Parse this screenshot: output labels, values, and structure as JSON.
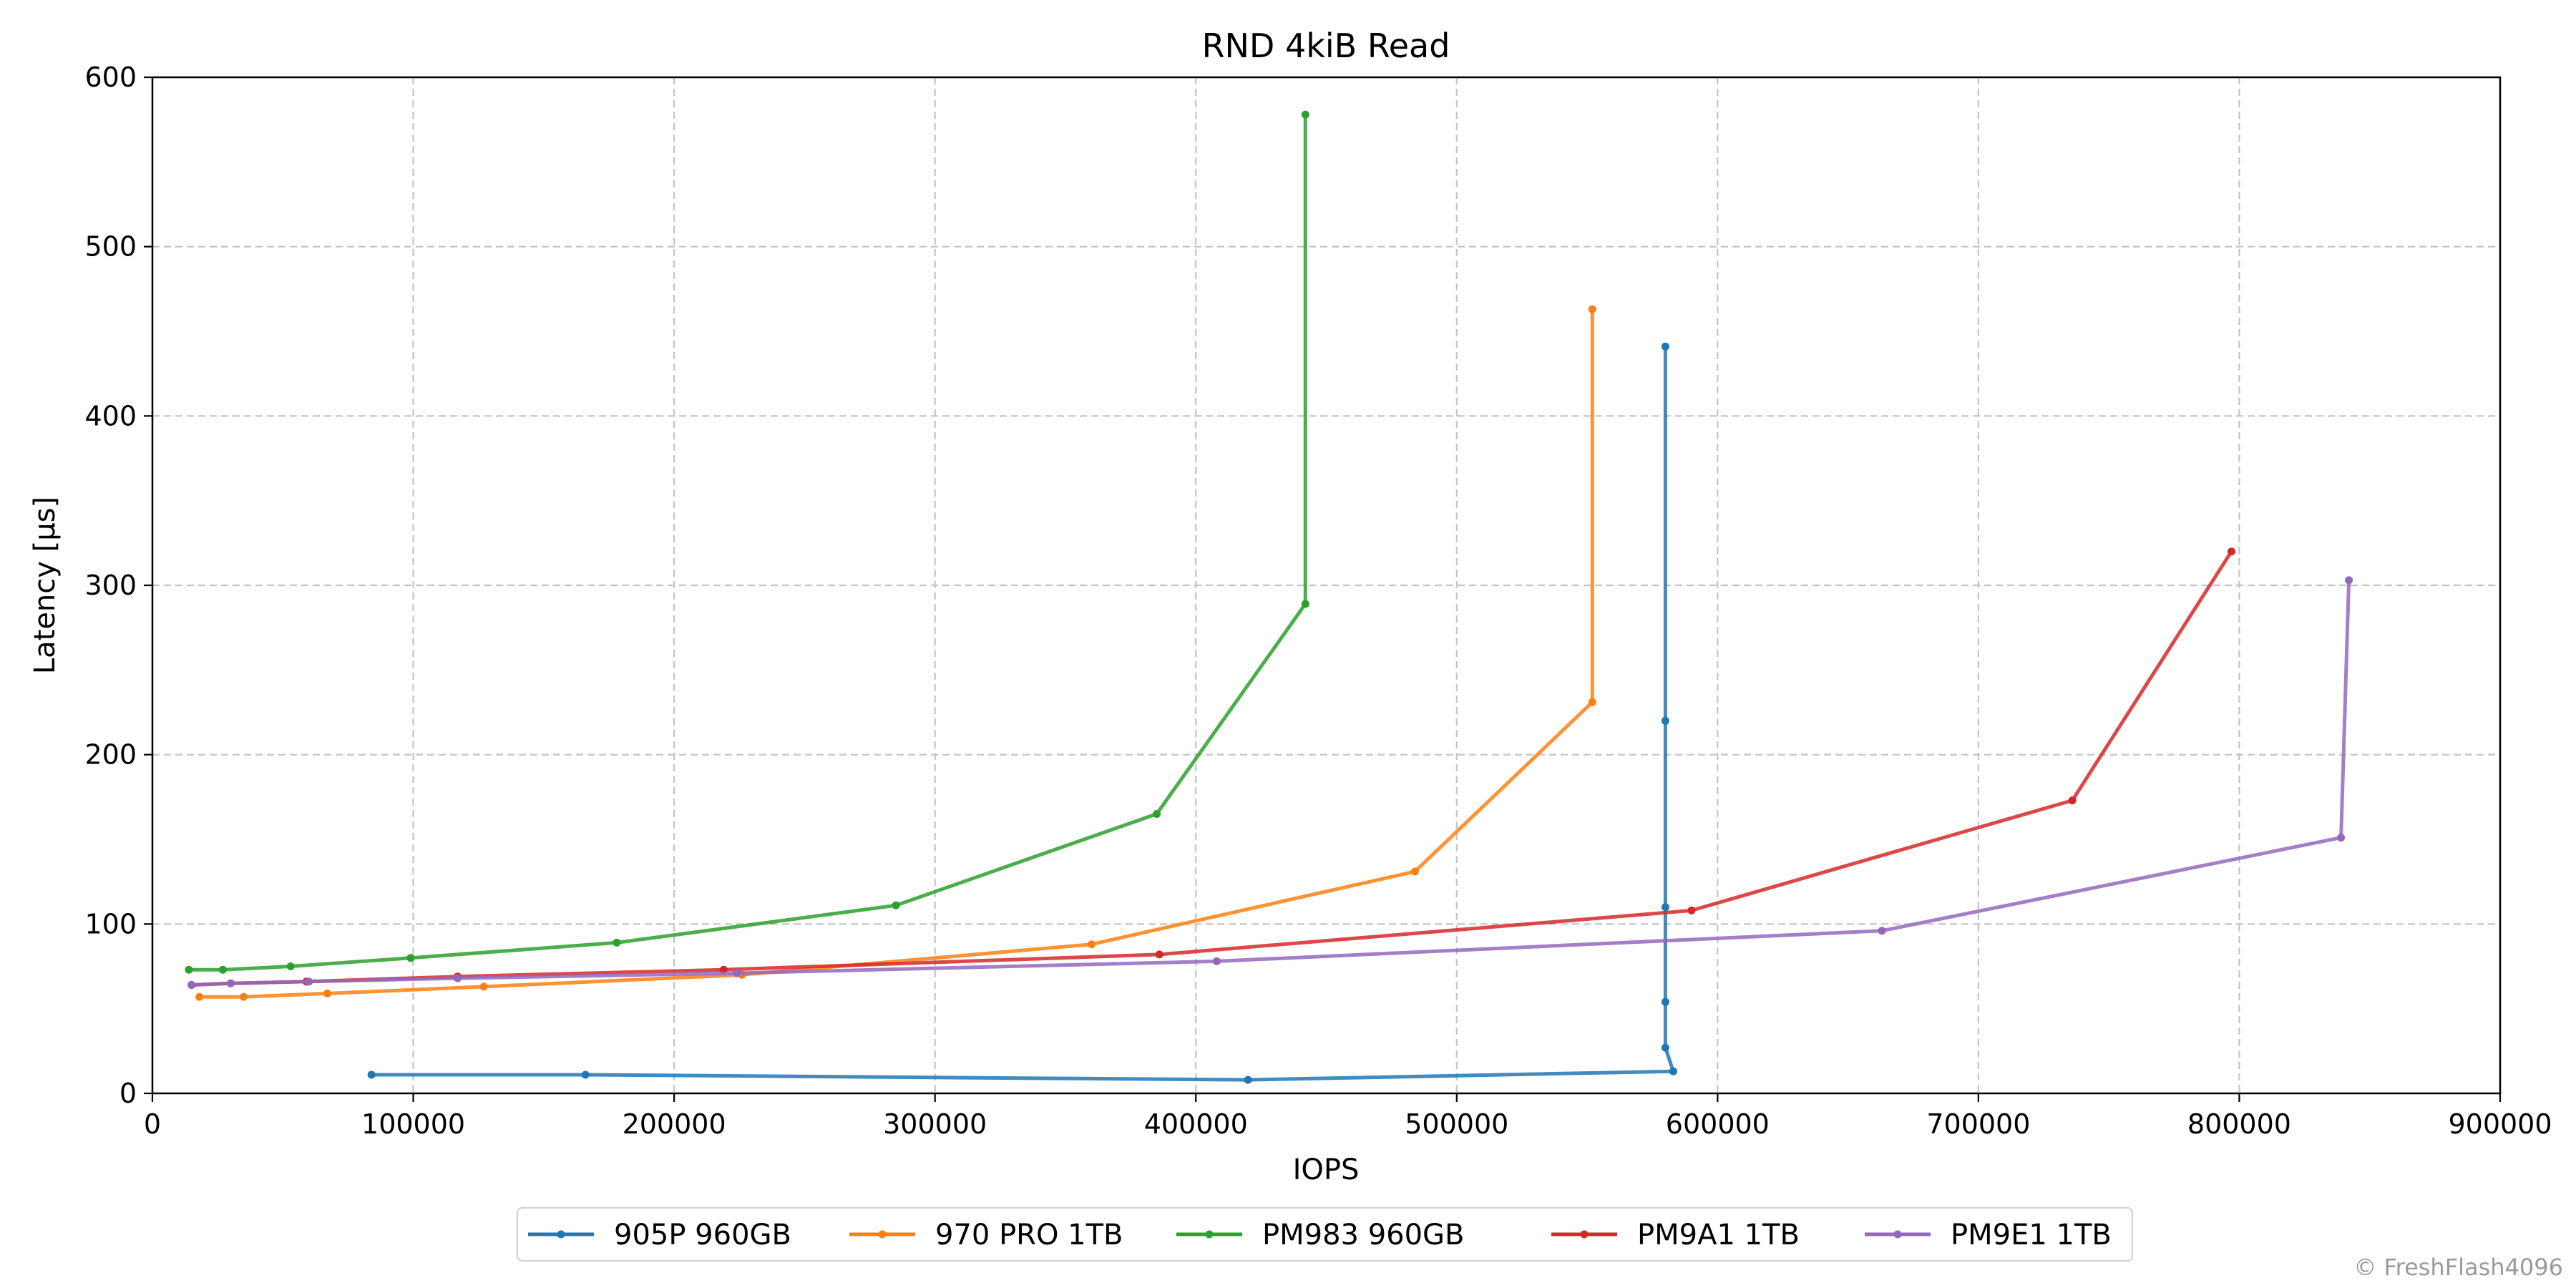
{
  "credit": "© FreshFlash4096",
  "chart_data": {
    "type": "line",
    "title": "RND 4kiB Read",
    "xlabel": "IOPS",
    "ylabel": "Latency [µs]",
    "xlim": [
      0,
      900000
    ],
    "ylim": [
      0,
      600
    ],
    "xticks": [
      0,
      100000,
      200000,
      300000,
      400000,
      500000,
      600000,
      700000,
      800000,
      900000
    ],
    "yticks": [
      0,
      100,
      200,
      300,
      400,
      500,
      600
    ],
    "grid": true,
    "legend_position": "bottom-center",
    "series": [
      {
        "name": "905P 960GB",
        "color": "#1f77b4",
        "points": [
          [
            84000,
            11
          ],
          [
            166000,
            11
          ],
          [
            420000,
            8
          ],
          [
            583000,
            13
          ],
          [
            580000,
            27
          ],
          [
            580000,
            54
          ],
          [
            580000,
            110
          ],
          [
            580000,
            220
          ],
          [
            580000,
            441
          ]
        ]
      },
      {
        "name": "970 PRO 1TB",
        "color": "#ff7f0e",
        "points": [
          [
            18000,
            57
          ],
          [
            35000,
            57
          ],
          [
            67000,
            59
          ],
          [
            127000,
            63
          ],
          [
            226000,
            70
          ],
          [
            360000,
            88
          ],
          [
            484000,
            131
          ],
          [
            552000,
            231
          ],
          [
            552000,
            463
          ]
        ]
      },
      {
        "name": "PM983 960GB",
        "color": "#2ca02c",
        "points": [
          [
            14000,
            73
          ],
          [
            27000,
            73
          ],
          [
            53000,
            75
          ],
          [
            99000,
            80
          ],
          [
            178000,
            89
          ],
          [
            285000,
            111
          ],
          [
            385000,
            165
          ],
          [
            442000,
            289
          ],
          [
            442000,
            578
          ]
        ]
      },
      {
        "name": "PM9A1 1TB",
        "color": "#d62728",
        "points": [
          [
            15000,
            64
          ],
          [
            30000,
            65
          ],
          [
            59000,
            66
          ],
          [
            117000,
            69
          ],
          [
            219000,
            73
          ],
          [
            386000,
            82
          ],
          [
            590000,
            108
          ],
          [
            736000,
            173
          ],
          [
            797000,
            320
          ]
        ]
      },
      {
        "name": "PM9E1 1TB",
        "color": "#9467bd",
        "points": [
          [
            15000,
            64
          ],
          [
            30000,
            65
          ],
          [
            60000,
            66
          ],
          [
            117000,
            68
          ],
          [
            224000,
            71
          ],
          [
            408000,
            78
          ],
          [
            663000,
            96
          ],
          [
            839000,
            151
          ],
          [
            842000,
            303
          ]
        ]
      }
    ]
  }
}
